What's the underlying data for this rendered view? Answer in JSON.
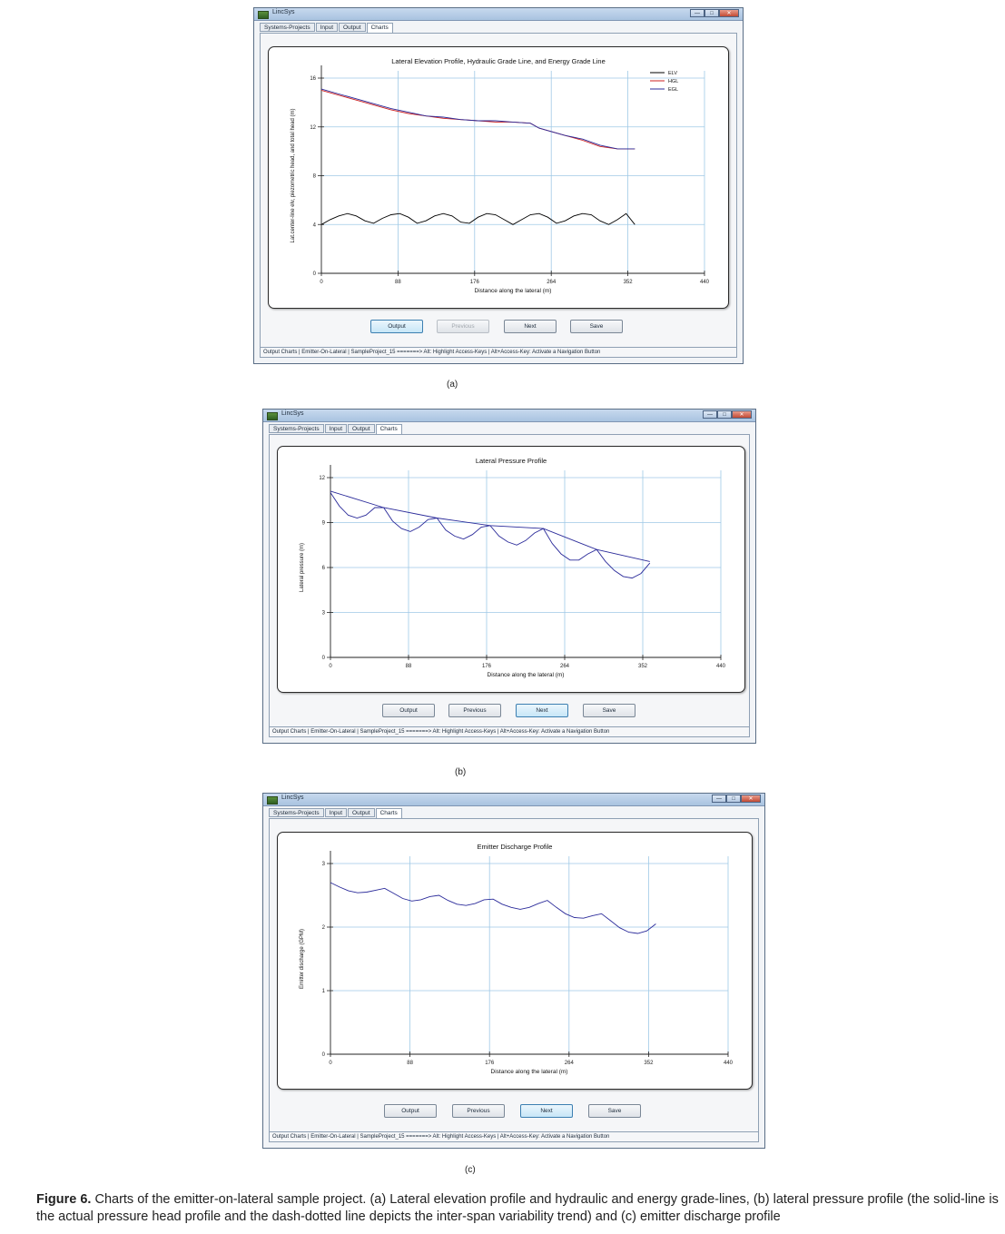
{
  "figure": {
    "panel_labels": [
      "(a)",
      "(b)",
      "(c)"
    ],
    "caption_label": "Figure 6.",
    "caption_text": "Charts of the emitter-on-lateral sample project. (a) Lateral elevation profile and hydraulic and energy grade-lines, (b) lateral pressure profile (the solid-line is the actual pressure head profile and the dash-dotted line depicts the inter-span variability trend) and (c) emitter discharge profile"
  },
  "app": {
    "title": "LincSys",
    "tabs": [
      "Systems-Projects",
      "Input",
      "Output",
      "Charts"
    ],
    "active_tab": "Charts",
    "buttons": {
      "output": "Output",
      "previous": "Previous",
      "next": "Next",
      "save": "Save"
    },
    "status_text": "Output Charts | Emitter-On-Lateral | SampleProject_15 =======> Alt: Highlight Access-Keys | Alt+Access-Key: Activate a Navigation Button",
    "colors": {
      "titlebar": "#b9cfe8",
      "elv": "#000000",
      "hgl": "#cc2222",
      "egl": "#2b2b9a",
      "grid": "#9fc9e6"
    }
  },
  "chart_data": [
    {
      "type": "line",
      "title": "Lateral Elevation Profile, Hydraulic Grade Line, and Energy Grade Line",
      "xlabel": "Distance along the lateral (m)",
      "ylabel": "Lat.center-line elv, piezometric head, and total head (m)",
      "xlim": [
        0,
        440
      ],
      "ylim": [
        0,
        16
      ],
      "xticks": [
        0,
        88,
        176,
        264,
        352,
        440
      ],
      "yticks": [
        0,
        4,
        8,
        12,
        16
      ],
      "grid": true,
      "legend": "top-right",
      "series": [
        {
          "name": "ELV",
          "color": "#000000",
          "x": [
            0,
            10,
            20,
            30,
            40,
            50,
            60,
            70,
            80,
            90,
            100,
            110,
            120,
            130,
            140,
            150,
            160,
            170,
            180,
            190,
            200,
            210,
            220,
            230,
            240,
            250,
            260,
            270,
            280,
            290,
            300,
            310,
            320,
            330,
            340,
            350,
            360
          ],
          "y": [
            4.0,
            4.4,
            4.7,
            4.9,
            4.7,
            4.3,
            4.1,
            4.5,
            4.8,
            4.9,
            4.6,
            4.1,
            4.3,
            4.7,
            4.9,
            4.7,
            4.2,
            4.1,
            4.6,
            4.9,
            4.8,
            4.4,
            4.0,
            4.4,
            4.8,
            4.9,
            4.6,
            4.1,
            4.3,
            4.7,
            4.9,
            4.8,
            4.3,
            4.0,
            4.4,
            4.9,
            4.0
          ]
        },
        {
          "name": "HGL",
          "color": "#cc2222",
          "x": [
            0,
            20,
            40,
            60,
            80,
            100,
            120,
            140,
            160,
            180,
            200,
            220,
            240,
            250,
            260,
            280,
            300,
            320,
            340,
            360
          ],
          "y": [
            15.0,
            14.6,
            14.2,
            13.8,
            13.4,
            13.1,
            12.9,
            12.7,
            12.6,
            12.5,
            12.4,
            12.4,
            12.3,
            11.9,
            11.7,
            11.3,
            10.9,
            10.4,
            10.2,
            10.2
          ]
        },
        {
          "name": "EGL",
          "color": "#2b2b9a",
          "x": [
            0,
            20,
            40,
            60,
            80,
            100,
            120,
            140,
            160,
            180,
            200,
            220,
            240,
            250,
            260,
            280,
            300,
            320,
            340,
            360
          ],
          "y": [
            15.1,
            14.7,
            14.3,
            13.9,
            13.5,
            13.2,
            12.9,
            12.8,
            12.6,
            12.5,
            12.5,
            12.4,
            12.3,
            11.9,
            11.7,
            11.3,
            11.0,
            10.5,
            10.2,
            10.2
          ]
        }
      ]
    },
    {
      "type": "line",
      "title": "Lateral Pressure Profile",
      "xlabel": "Distance along the lateral (m)",
      "ylabel": "Lateral pressure (m)",
      "xlim": [
        0,
        440
      ],
      "ylim": [
        0,
        12
      ],
      "xticks": [
        0,
        88,
        176,
        264,
        352,
        440
      ],
      "yticks": [
        0,
        3,
        6,
        9,
        12
      ],
      "grid": true,
      "series": [
        {
          "color": "#2b2b9a",
          "x": [
            0,
            10,
            20,
            30,
            40,
            50,
            60,
            70,
            80,
            90,
            100,
            110,
            120,
            130,
            140,
            150,
            160,
            170,
            180,
            190,
            200,
            210,
            220,
            230,
            240,
            250,
            260,
            270,
            280,
            290,
            300,
            310,
            320,
            330,
            340,
            350,
            360
          ],
          "y": [
            11.0,
            10.1,
            9.5,
            9.3,
            9.5,
            10.0,
            10.0,
            9.1,
            8.6,
            8.4,
            8.7,
            9.2,
            9.3,
            8.5,
            8.1,
            7.9,
            8.2,
            8.7,
            8.8,
            8.1,
            7.7,
            7.5,
            7.8,
            8.3,
            8.6,
            7.6,
            6.9,
            6.5,
            6.5,
            6.9,
            7.2,
            6.4,
            5.8,
            5.4,
            5.3,
            5.6,
            6.3
          ]
        },
        {
          "color": "#2b2b9a",
          "x": [
            0,
            60,
            120,
            180,
            240,
            300,
            360
          ],
          "y": [
            11.1,
            10.0,
            9.3,
            8.8,
            8.6,
            7.2,
            6.4
          ]
        }
      ]
    },
    {
      "type": "line",
      "title": "Emitter Discharge Profile",
      "xlabel": "Distance along the lateral (m)",
      "ylabel": "Emitter discharge (GPM)",
      "xlim": [
        0,
        440
      ],
      "ylim": [
        0,
        3
      ],
      "xticks": [
        0,
        88,
        176,
        264,
        352,
        440
      ],
      "yticks": [
        0,
        1,
        2,
        3
      ],
      "grid": true,
      "series": [
        {
          "color": "#2b2b9a",
          "x": [
            0,
            10,
            20,
            30,
            40,
            50,
            60,
            70,
            80,
            90,
            100,
            110,
            120,
            130,
            140,
            150,
            160,
            170,
            180,
            190,
            200,
            210,
            220,
            230,
            240,
            250,
            260,
            270,
            280,
            290,
            300,
            310,
            320,
            330,
            340,
            350,
            360
          ],
          "y": [
            2.7,
            2.63,
            2.57,
            2.54,
            2.55,
            2.58,
            2.61,
            2.53,
            2.45,
            2.41,
            2.43,
            2.48,
            2.5,
            2.42,
            2.36,
            2.34,
            2.37,
            2.43,
            2.44,
            2.36,
            2.31,
            2.28,
            2.31,
            2.37,
            2.42,
            2.31,
            2.21,
            2.15,
            2.14,
            2.18,
            2.21,
            2.1,
            1.99,
            1.92,
            1.9,
            1.94,
            2.05
          ]
        }
      ]
    }
  ]
}
